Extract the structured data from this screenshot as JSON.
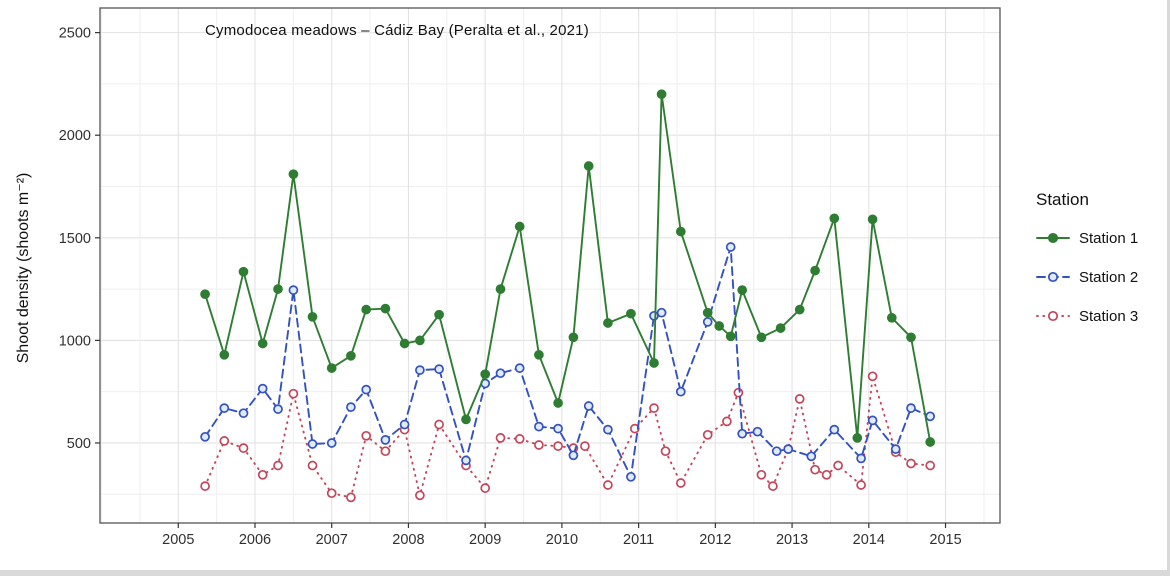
{
  "figure": {
    "title": "Cymodocea meadows – Cádiz Bay (Peralta et al., 2021)",
    "y_axis": {
      "label": "Shoot density (shoots m⁻²)",
      "tick_labels": [
        "500",
        "1000",
        "1500",
        "2000",
        "2500"
      ]
    },
    "x_axis": {
      "tick_labels": [
        "2005",
        "2006",
        "2007",
        "2008",
        "2009",
        "2010",
        "2011",
        "2012",
        "2013",
        "2014",
        "2015"
      ]
    },
    "legend": {
      "title": "Station",
      "items": [
        {
          "label": "Station 1"
        },
        {
          "label": "Station 2"
        },
        {
          "label": "Station 3"
        }
      ]
    }
  },
  "chart_data": {
    "type": "line",
    "title": "Cymodocea meadows – Cádiz Bay (Peralta et al., 2021)",
    "xlabel": "",
    "ylabel": "Shoot density (shoots m-2)",
    "x_ticks": [
      2005,
      2006,
      2007,
      2008,
      2009,
      2010,
      2011,
      2012,
      2013,
      2014,
      2015
    ],
    "y_ticks": [
      500,
      1000,
      1500,
      2000,
      2500
    ],
    "x_minor_step": 0.5,
    "y_minor_step": 250,
    "xlim": [
      2003.98,
      2015.71
    ],
    "ylim": [
      110,
      2620
    ],
    "grid": "major+minor",
    "legend_position": "right",
    "series": [
      {
        "name": "Station 1",
        "color": "#2e7d32",
        "line": "solid",
        "marker": "filled-circle",
        "x": [
          2005.35,
          2005.6,
          2005.85,
          2006.1,
          2006.3,
          2006.5,
          2006.75,
          2007.0,
          2007.25,
          2007.45,
          2007.7,
          2007.95,
          2008.15,
          2008.4,
          2008.75,
          2009.0,
          2009.2,
          2009.45,
          2009.7,
          2009.95,
          2010.15,
          2010.35,
          2010.6,
          2010.9,
          2011.2,
          2011.3,
          2011.55,
          2011.9,
          2012.05,
          2012.2,
          2012.35,
          2012.6,
          2012.85,
          2013.1,
          2013.3,
          2013.55,
          2013.85,
          2014.05,
          2014.3,
          2014.55,
          2014.8
        ],
        "y": [
          1225,
          930,
          1335,
          985,
          1250,
          1810,
          1115,
          865,
          925,
          1150,
          1155,
          985,
          1000,
          1125,
          615,
          835,
          1250,
          1555,
          930,
          695,
          1015,
          1850,
          1085,
          1130,
          890,
          2200,
          1530,
          1135,
          1070,
          1020,
          1245,
          1015,
          1060,
          1150,
          1340,
          1595,
          525,
          1590,
          1110,
          1015,
          505
        ]
      },
      {
        "name": "Station 2",
        "color": "#3351c0",
        "line": "dashed",
        "marker": "open-circle",
        "x": [
          2005.35,
          2005.6,
          2005.85,
          2006.1,
          2006.3,
          2006.5,
          2006.75,
          2007.0,
          2007.25,
          2007.45,
          2007.7,
          2007.95,
          2008.15,
          2008.4,
          2008.75,
          2009.0,
          2009.2,
          2009.45,
          2009.7,
          2009.95,
          2010.15,
          2010.35,
          2010.6,
          2010.9,
          2011.2,
          2011.3,
          2011.55,
          2011.9,
          2012.2,
          2012.35,
          2012.55,
          2012.8,
          2012.95,
          2013.25,
          2013.55,
          2013.9,
          2014.05,
          2014.35,
          2014.55,
          2014.8
        ],
        "y": [
          530,
          670,
          645,
          765,
          665,
          1245,
          495,
          500,
          675,
          760,
          515,
          590,
          855,
          860,
          415,
          790,
          840,
          865,
          580,
          570,
          440,
          680,
          565,
          335,
          1120,
          1135,
          750,
          1090,
          1455,
          545,
          555,
          460,
          470,
          435,
          565,
          425,
          610,
          470,
          670,
          630
        ]
      },
      {
        "name": "Station 3",
        "color": "#c4455a",
        "line": "dotted",
        "marker": "open-circle",
        "x": [
          2005.35,
          2005.6,
          2005.85,
          2006.1,
          2006.3,
          2006.5,
          2006.75,
          2007.0,
          2007.25,
          2007.45,
          2007.7,
          2007.95,
          2008.15,
          2008.4,
          2008.75,
          2009.0,
          2009.2,
          2009.45,
          2009.7,
          2009.95,
          2010.15,
          2010.3,
          2010.6,
          2010.95,
          2011.2,
          2011.35,
          2011.55,
          2011.9,
          2012.15,
          2012.3,
          2012.6,
          2012.75,
          2012.95,
          2013.1,
          2013.3,
          2013.45,
          2013.6,
          2013.9,
          2014.05,
          2014.35,
          2014.55,
          2014.8
        ],
        "y": [
          290,
          510,
          475,
          345,
          390,
          740,
          390,
          255,
          235,
          535,
          460,
          565,
          245,
          590,
          390,
          280,
          525,
          520,
          490,
          485,
          475,
          485,
          295,
          570,
          670,
          460,
          305,
          540,
          605,
          745,
          345,
          290,
          470,
          715,
          370,
          345,
          390,
          295,
          825,
          455,
          400,
          390
        ]
      }
    ]
  }
}
